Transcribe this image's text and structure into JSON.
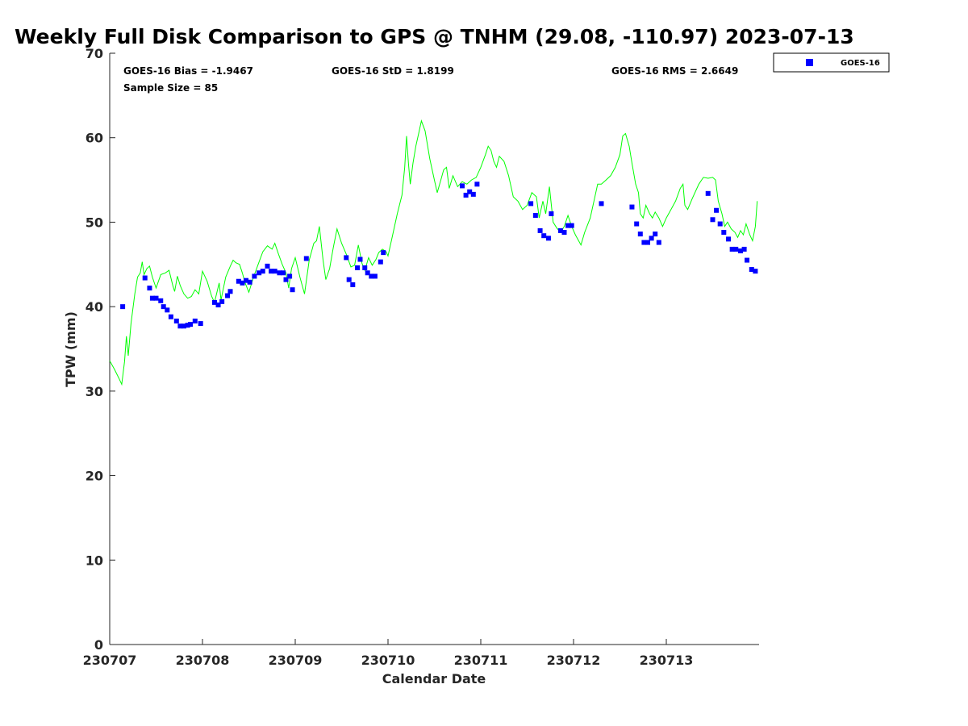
{
  "chart_data": {
    "type": "scatter",
    "title": "Weekly Full Disk Comparison to GPS @ TNHM (29.08, -110.97) 2023-07-13",
    "xlabel": "Calendar Date",
    "ylabel": "TPW (mm)",
    "xlim": [
      0,
      7
    ],
    "ylim": [
      0,
      70
    ],
    "x_units": "days since 230707 00Z",
    "x_ticks": [
      {
        "value": 0,
        "label": "230707"
      },
      {
        "value": 1,
        "label": "230708"
      },
      {
        "value": 2,
        "label": "230709"
      },
      {
        "value": 3,
        "label": "230710"
      },
      {
        "value": 4,
        "label": "230711"
      },
      {
        "value": 5,
        "label": "230712"
      },
      {
        "value": 6,
        "label": "230713"
      }
    ],
    "y_ticks": [
      0,
      10,
      20,
      30,
      40,
      50,
      60,
      70
    ],
    "grid": false,
    "legend_position": "top-right, outside plot",
    "stats": {
      "bias": "GOES-16 Bias = -1.9467",
      "std": "GOES-16 StD = 1.8199",
      "rms": "GOES-16 RMS = 2.6649",
      "sample": "Sample Size = 85"
    },
    "series": [
      {
        "name": "GPS",
        "type": "line",
        "color": "#00ff00",
        "points": [
          [
            0.0,
            33.6
          ],
          [
            0.05,
            32.6
          ],
          [
            0.1,
            31.5
          ],
          [
            0.13,
            30.8
          ],
          [
            0.16,
            33.5
          ],
          [
            0.18,
            36.5
          ],
          [
            0.2,
            34.2
          ],
          [
            0.23,
            38.0
          ],
          [
            0.27,
            41.5
          ],
          [
            0.3,
            43.5
          ],
          [
            0.33,
            44.0
          ],
          [
            0.35,
            45.3
          ],
          [
            0.37,
            43.8
          ],
          [
            0.4,
            44.5
          ],
          [
            0.43,
            44.8
          ],
          [
            0.46,
            43.5
          ],
          [
            0.5,
            42.2
          ],
          [
            0.55,
            43.8
          ],
          [
            0.6,
            44.0
          ],
          [
            0.64,
            44.3
          ],
          [
            0.68,
            42.5
          ],
          [
            0.7,
            41.8
          ],
          [
            0.73,
            43.6
          ],
          [
            0.76,
            42.5
          ],
          [
            0.8,
            41.5
          ],
          [
            0.84,
            41.0
          ],
          [
            0.88,
            41.2
          ],
          [
            0.92,
            42.0
          ],
          [
            0.96,
            41.5
          ],
          [
            1.0,
            44.2
          ],
          [
            1.05,
            43.0
          ],
          [
            1.1,
            41.2
          ],
          [
            1.13,
            40.5
          ],
          [
            1.18,
            42.8
          ],
          [
            1.2,
            40.8
          ],
          [
            1.25,
            43.5
          ],
          [
            1.3,
            44.8
          ],
          [
            1.33,
            45.5
          ],
          [
            1.36,
            45.2
          ],
          [
            1.4,
            45.0
          ],
          [
            1.43,
            44.0
          ],
          [
            1.46,
            42.8
          ],
          [
            1.5,
            41.7
          ],
          [
            1.55,
            43.5
          ],
          [
            1.6,
            45.0
          ],
          [
            1.65,
            46.5
          ],
          [
            1.7,
            47.2
          ],
          [
            1.75,
            46.8
          ],
          [
            1.78,
            47.5
          ],
          [
            1.82,
            46.2
          ],
          [
            1.86,
            45.0
          ],
          [
            1.9,
            44.0
          ],
          [
            1.93,
            42.2
          ],
          [
            1.96,
            44.5
          ],
          [
            2.0,
            45.8
          ],
          [
            2.05,
            43.5
          ],
          [
            2.1,
            41.5
          ],
          [
            2.15,
            45.5
          ],
          [
            2.2,
            47.5
          ],
          [
            2.23,
            47.8
          ],
          [
            2.26,
            49.5
          ],
          [
            2.3,
            45.5
          ],
          [
            2.33,
            43.2
          ],
          [
            2.37,
            44.5
          ],
          [
            2.41,
            47.0
          ],
          [
            2.45,
            49.2
          ],
          [
            2.5,
            47.5
          ],
          [
            2.55,
            46.2
          ],
          [
            2.6,
            44.7
          ],
          [
            2.64,
            44.9
          ],
          [
            2.68,
            47.3
          ],
          [
            2.72,
            45.1
          ],
          [
            2.75,
            44.3
          ],
          [
            2.79,
            45.8
          ],
          [
            2.83,
            44.9
          ],
          [
            2.87,
            45.6
          ],
          [
            2.9,
            46.4
          ],
          [
            2.94,
            46.8
          ],
          [
            2.98,
            46.5
          ],
          [
            3.0,
            46.0
          ],
          [
            3.05,
            48.5
          ],
          [
            3.1,
            51.0
          ],
          [
            3.15,
            53.2
          ],
          [
            3.18,
            56.5
          ],
          [
            3.2,
            60.2
          ],
          [
            3.22,
            57.0
          ],
          [
            3.24,
            54.5
          ],
          [
            3.27,
            57.0
          ],
          [
            3.3,
            59.0
          ],
          [
            3.33,
            60.5
          ],
          [
            3.36,
            62.0
          ],
          [
            3.4,
            60.8
          ],
          [
            3.45,
            57.5
          ],
          [
            3.5,
            55.0
          ],
          [
            3.53,
            53.5
          ],
          [
            3.57,
            55.0
          ],
          [
            3.6,
            56.2
          ],
          [
            3.63,
            56.5
          ],
          [
            3.66,
            54.0
          ],
          [
            3.7,
            55.5
          ],
          [
            3.75,
            54.2
          ],
          [
            3.8,
            54.8
          ],
          [
            3.85,
            54.5
          ],
          [
            3.9,
            55.0
          ],
          [
            3.95,
            55.3
          ],
          [
            4.0,
            56.5
          ],
          [
            4.05,
            58.0
          ],
          [
            4.08,
            59.0
          ],
          [
            4.11,
            58.5
          ],
          [
            4.14,
            57.2
          ],
          [
            4.17,
            56.5
          ],
          [
            4.2,
            57.8
          ],
          [
            4.25,
            57.2
          ],
          [
            4.3,
            55.5
          ],
          [
            4.35,
            53.0
          ],
          [
            4.4,
            52.5
          ],
          [
            4.45,
            51.5
          ],
          [
            4.5,
            52.0
          ],
          [
            4.55,
            53.5
          ],
          [
            4.6,
            53.0
          ],
          [
            4.63,
            50.5
          ],
          [
            4.67,
            52.5
          ],
          [
            4.7,
            51.0
          ],
          [
            4.74,
            54.2
          ],
          [
            4.78,
            50.0
          ],
          [
            4.82,
            49.3
          ],
          [
            4.86,
            48.8
          ],
          [
            4.9,
            49.5
          ],
          [
            4.94,
            50.8
          ],
          [
            4.98,
            49.5
          ],
          [
            5.02,
            48.5
          ],
          [
            5.08,
            47.3
          ],
          [
            5.12,
            48.8
          ],
          [
            5.18,
            50.5
          ],
          [
            5.22,
            52.5
          ],
          [
            5.26,
            54.5
          ],
          [
            5.3,
            54.5
          ],
          [
            5.35,
            55.0
          ],
          [
            5.4,
            55.5
          ],
          [
            5.45,
            56.5
          ],
          [
            5.5,
            58.0
          ],
          [
            5.53,
            60.2
          ],
          [
            5.56,
            60.5
          ],
          [
            5.6,
            59.0
          ],
          [
            5.63,
            57.0
          ],
          [
            5.67,
            54.5
          ],
          [
            5.7,
            53.5
          ],
          [
            5.72,
            51.0
          ],
          [
            5.75,
            50.5
          ],
          [
            5.78,
            52.0
          ],
          [
            5.82,
            51.0
          ],
          [
            5.85,
            50.5
          ],
          [
            5.88,
            51.2
          ],
          [
            5.92,
            50.5
          ],
          [
            5.96,
            49.5
          ],
          [
            6.0,
            50.5
          ],
          [
            6.05,
            51.5
          ],
          [
            6.1,
            52.5
          ],
          [
            6.15,
            54.0
          ],
          [
            6.18,
            54.5
          ],
          [
            6.2,
            52.0
          ],
          [
            6.23,
            51.5
          ],
          [
            6.28,
            52.8
          ],
          [
            6.35,
            54.5
          ],
          [
            6.4,
            55.3
          ],
          [
            6.45,
            55.2
          ],
          [
            6.5,
            55.3
          ],
          [
            6.53,
            55.0
          ],
          [
            6.56,
            52.5
          ],
          [
            6.6,
            51.0
          ],
          [
            6.63,
            49.5
          ],
          [
            6.66,
            50.0
          ],
          [
            6.7,
            49.2
          ],
          [
            6.74,
            48.8
          ],
          [
            6.77,
            48.2
          ],
          [
            6.8,
            49.0
          ],
          [
            6.83,
            48.5
          ],
          [
            6.86,
            49.8
          ],
          [
            6.9,
            48.5
          ],
          [
            6.93,
            47.8
          ],
          [
            6.96,
            49.5
          ],
          [
            6.98,
            52.5
          ]
        ]
      },
      {
        "name": "GOES-16",
        "type": "scatter",
        "marker": "square",
        "color": "#0000ff",
        "points": [
          [
            0.14,
            40.0
          ],
          [
            0.38,
            43.4
          ],
          [
            0.43,
            42.2
          ],
          [
            0.46,
            41.0
          ],
          [
            0.5,
            41.0
          ],
          [
            0.55,
            40.7
          ],
          [
            0.58,
            40.0
          ],
          [
            0.62,
            39.6
          ],
          [
            0.66,
            38.8
          ],
          [
            0.72,
            38.3
          ],
          [
            0.76,
            37.7
          ],
          [
            0.8,
            37.7
          ],
          [
            0.84,
            37.8
          ],
          [
            0.87,
            37.9
          ],
          [
            0.92,
            38.3
          ],
          [
            0.98,
            38.0
          ],
          [
            1.13,
            40.5
          ],
          [
            1.17,
            40.2
          ],
          [
            1.21,
            40.6
          ],
          [
            1.27,
            41.3
          ],
          [
            1.3,
            41.8
          ],
          [
            1.39,
            43.0
          ],
          [
            1.43,
            42.8
          ],
          [
            1.47,
            43.1
          ],
          [
            1.51,
            42.9
          ],
          [
            1.56,
            43.6
          ],
          [
            1.61,
            44.0
          ],
          [
            1.65,
            44.2
          ],
          [
            1.7,
            44.8
          ],
          [
            1.74,
            44.2
          ],
          [
            1.78,
            44.2
          ],
          [
            1.83,
            44.0
          ],
          [
            1.87,
            44.0
          ],
          [
            1.9,
            43.2
          ],
          [
            1.94,
            43.6
          ],
          [
            1.97,
            42.0
          ],
          [
            2.12,
            45.7
          ],
          [
            2.55,
            45.8
          ],
          [
            2.58,
            43.2
          ],
          [
            2.62,
            42.6
          ],
          [
            2.67,
            44.6
          ],
          [
            2.7,
            45.6
          ],
          [
            2.75,
            44.6
          ],
          [
            2.78,
            44.0
          ],
          [
            2.82,
            43.6
          ],
          [
            2.86,
            43.6
          ],
          [
            2.92,
            45.3
          ],
          [
            2.95,
            46.4
          ],
          [
            3.8,
            54.3
          ],
          [
            3.84,
            53.2
          ],
          [
            3.88,
            53.6
          ],
          [
            3.92,
            53.3
          ],
          [
            3.96,
            54.5
          ],
          [
            4.54,
            52.2
          ],
          [
            4.59,
            50.8
          ],
          [
            4.64,
            49.0
          ],
          [
            4.68,
            48.4
          ],
          [
            4.73,
            48.1
          ],
          [
            4.76,
            51.0
          ],
          [
            4.86,
            49.0
          ],
          [
            4.9,
            48.8
          ],
          [
            4.94,
            49.6
          ],
          [
            4.98,
            49.6
          ],
          [
            5.3,
            52.2
          ],
          [
            5.63,
            51.8
          ],
          [
            5.68,
            49.8
          ],
          [
            5.72,
            48.6
          ],
          [
            5.76,
            47.6
          ],
          [
            5.8,
            47.6
          ],
          [
            5.84,
            48.1
          ],
          [
            5.88,
            48.6
          ],
          [
            5.92,
            47.6
          ],
          [
            6.45,
            53.4
          ],
          [
            6.5,
            50.3
          ],
          [
            6.54,
            51.4
          ],
          [
            6.58,
            49.8
          ],
          [
            6.62,
            48.8
          ],
          [
            6.67,
            48.0
          ],
          [
            6.71,
            46.8
          ],
          [
            6.75,
            46.8
          ],
          [
            6.8,
            46.6
          ],
          [
            6.84,
            46.8
          ],
          [
            6.87,
            45.5
          ],
          [
            6.92,
            44.4
          ],
          [
            6.96,
            44.2
          ]
        ]
      }
    ]
  },
  "legend": {
    "label": "GOES-16",
    "marker_color": "#0000ff"
  }
}
